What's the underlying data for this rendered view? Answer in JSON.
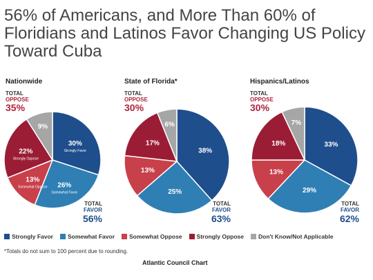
{
  "headline": "56% of Americans, and More Than 60% of Floridians and Latinos Favor Changing US Policy Toward Cuba",
  "footnote": "*Totals do not sum to 100 percent due to rounding.",
  "source": "Atlantic Council Chart",
  "colors": {
    "strongly_favor": "#1f4e8c",
    "somewhat_favor": "#2f7fb5",
    "somewhat_oppose": "#c8404a",
    "strongly_oppose": "#9b1d35",
    "dont_know": "#a6a6a6",
    "favor_text": "#1f4e8c",
    "oppose_text": "#b0233a"
  },
  "legend": [
    {
      "key": "strongly_favor",
      "label": "Strongly Favor"
    },
    {
      "key": "somewhat_favor",
      "label": "Somewhat Favor"
    },
    {
      "key": "somewhat_oppose",
      "label": "Somewhat Oppose"
    },
    {
      "key": "strongly_oppose",
      "label": "Strongly Oppose"
    },
    {
      "key": "dont_know",
      "label": "Don't Know/Not Applicable"
    }
  ],
  "chart_data": [
    {
      "type": "pie",
      "title": "Nationwide",
      "total_oppose_label": [
        "TOTAL",
        "OPPOSE"
      ],
      "total_oppose_value": "35%",
      "total_favor_label": [
        "TOTAL",
        "FAVOR"
      ],
      "total_favor_value": "56%",
      "slices": [
        {
          "key": "strongly_favor",
          "value": 30,
          "label": "30%",
          "sublabel": "Strongly Favor"
        },
        {
          "key": "somewhat_favor",
          "value": 26,
          "label": "26%",
          "sublabel": "Somewhat Favor"
        },
        {
          "key": "somewhat_oppose",
          "value": 13,
          "label": "13%",
          "sublabel": "Somewhat Oppose"
        },
        {
          "key": "strongly_oppose",
          "value": 22,
          "label": "22%",
          "sublabel": "Strongly Oppose"
        },
        {
          "key": "dont_know",
          "value": 9,
          "label": "9%",
          "sublabel": ""
        }
      ]
    },
    {
      "type": "pie",
      "title": "State of Florida*",
      "total_oppose_label": [
        "TOTAL",
        "OPPOSE"
      ],
      "total_oppose_value": "30%",
      "total_favor_label": [
        "TOTAL",
        "FAVOR"
      ],
      "total_favor_value": "63%",
      "slices": [
        {
          "key": "strongly_favor",
          "value": 38,
          "label": "38%",
          "sublabel": ""
        },
        {
          "key": "somewhat_favor",
          "value": 25,
          "label": "25%",
          "sublabel": ""
        },
        {
          "key": "somewhat_oppose",
          "value": 13,
          "label": "13%",
          "sublabel": ""
        },
        {
          "key": "strongly_oppose",
          "value": 17,
          "label": "17%",
          "sublabel": ""
        },
        {
          "key": "dont_know",
          "value": 6,
          "label": "6%",
          "sublabel": ""
        }
      ]
    },
    {
      "type": "pie",
      "title": "Hispanics/Latinos",
      "total_oppose_label": [
        "TOTAL",
        "OPPOSE"
      ],
      "total_oppose_value": "30%",
      "total_favor_label": [
        "TOTAL",
        "FAVOR"
      ],
      "total_favor_value": "62%",
      "slices": [
        {
          "key": "strongly_favor",
          "value": 33,
          "label": "33%",
          "sublabel": ""
        },
        {
          "key": "somewhat_favor",
          "value": 29,
          "label": "29%",
          "sublabel": ""
        },
        {
          "key": "somewhat_oppose",
          "value": 13,
          "label": "13%",
          "sublabel": ""
        },
        {
          "key": "strongly_oppose",
          "value": 18,
          "label": "18%",
          "sublabel": ""
        },
        {
          "key": "dont_know",
          "value": 7,
          "label": "7%",
          "sublabel": ""
        }
      ]
    }
  ]
}
